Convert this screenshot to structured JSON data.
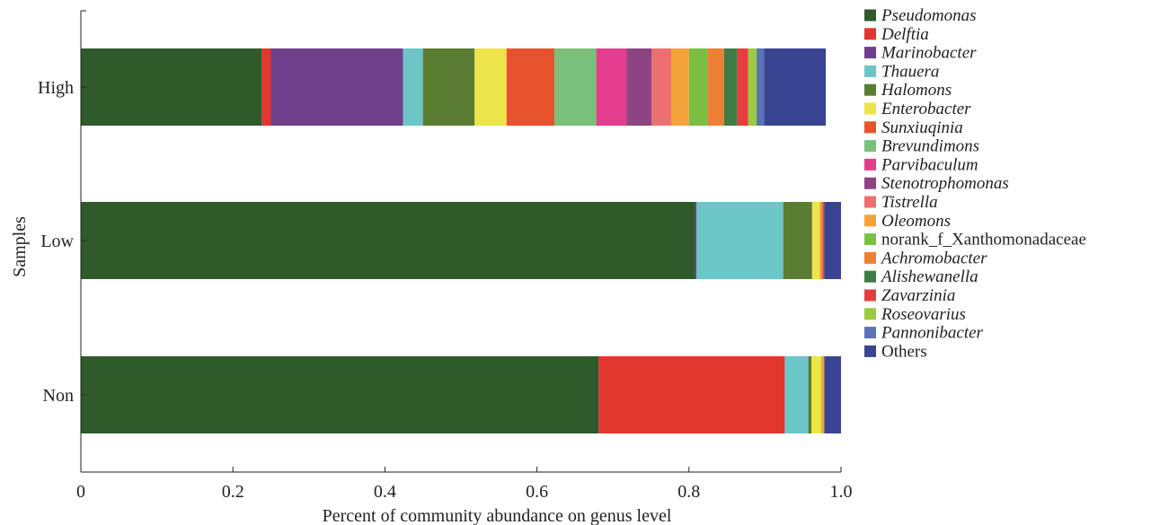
{
  "chart_data": {
    "type": "bar",
    "orientation": "horizontal",
    "stacked": true,
    "title": "",
    "xlabel": "Percent of community abundance on genus level",
    "ylabel": "Samples",
    "xlim": [
      0,
      1.0
    ],
    "xticks": [
      "0",
      "0.2",
      "0.4",
      "0.6",
      "0.8",
      "1.0"
    ],
    "categories": [
      "High",
      "Low",
      "Non"
    ],
    "grid": false,
    "legend_position": "right",
    "series": [
      {
        "name": "Pseudomonas",
        "color": "#2f5a2a",
        "italic": true,
        "values": [
          0.238,
          0.808,
          0.681
        ]
      },
      {
        "name": "Delftia",
        "color": "#e2372f",
        "italic": true,
        "values": [
          0.012,
          0.0,
          0.245
        ]
      },
      {
        "name": "Marinobacter",
        "color": "#6f3f8c",
        "italic": true,
        "values": [
          0.174,
          0.002,
          0.0
        ]
      },
      {
        "name": "Thauera",
        "color": "#6cc6c8",
        "italic": true,
        "values": [
          0.026,
          0.114,
          0.031
        ]
      },
      {
        "name": "Halomons",
        "color": "#5b7d31",
        "italic": true,
        "values": [
          0.068,
          0.038,
          0.004
        ]
      },
      {
        "name": "Enterobacter",
        "color": "#ece54a",
        "italic": true,
        "values": [
          0.042,
          0.01,
          0.013
        ]
      },
      {
        "name": "Sunxiuqinia",
        "color": "#e8532f",
        "italic": true,
        "values": [
          0.063,
          0.0,
          0.0
        ]
      },
      {
        "name": "Brevundimons",
        "color": "#79c17a",
        "italic": true,
        "values": [
          0.055,
          0.0,
          0.0
        ]
      },
      {
        "name": "Parvibaculum",
        "color": "#e33d8d",
        "italic": true,
        "values": [
          0.04,
          0.0,
          0.0
        ]
      },
      {
        "name": "Stenotrophomonas",
        "color": "#8c4582",
        "italic": true,
        "values": [
          0.033,
          0.0,
          0.0
        ]
      },
      {
        "name": "Tistrella",
        "color": "#ec7070",
        "italic": true,
        "values": [
          0.026,
          0.0,
          0.0
        ]
      },
      {
        "name": "Oleomons",
        "color": "#f3a33a",
        "italic": true,
        "values": [
          0.023,
          0.002,
          0.004
        ]
      },
      {
        "name": "norank_f_Xanthomonadaceae",
        "color": "#7bbf41",
        "italic": false,
        "values": [
          0.024,
          0.0,
          0.0
        ]
      },
      {
        "name": "Achromobacter",
        "color": "#ee8034",
        "italic": true,
        "values": [
          0.022,
          0.002,
          0.0
        ]
      },
      {
        "name": "Alishewanella",
        "color": "#3d7d45",
        "italic": true,
        "values": [
          0.017,
          0.0,
          0.0
        ]
      },
      {
        "name": "Zavarzinia",
        "color": "#e24040",
        "italic": true,
        "values": [
          0.015,
          0.002,
          0.0
        ]
      },
      {
        "name": "Roseovarius",
        "color": "#9acb3e",
        "italic": true,
        "values": [
          0.011,
          0.0,
          0.0
        ]
      },
      {
        "name": "Pannonibacter",
        "color": "#5a72b8",
        "italic": true,
        "values": [
          0.01,
          0.0,
          0.0
        ]
      },
      {
        "name": "Others",
        "color": "#3a4592",
        "italic": false,
        "values": [
          0.081,
          0.022,
          0.022
        ]
      }
    ]
  }
}
